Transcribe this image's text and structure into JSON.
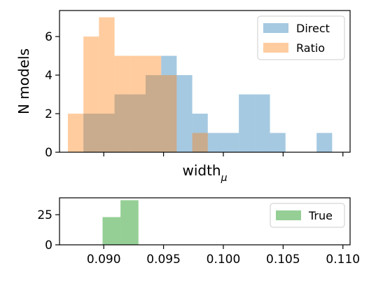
{
  "chart_data": [
    {
      "type": "bar",
      "subtype": "histogram",
      "xlabel": "width",
      "xlabel_subscript": "μ",
      "ylabel": "N models",
      "xlim": [
        0.0863,
        0.1106
      ],
      "ylim": [
        0,
        7.35
      ],
      "yticks": [
        0,
        2,
        4,
        6
      ],
      "xticks": [
        0.09,
        0.095,
        0.1,
        0.105,
        0.11
      ],
      "xticklabels_visible": false,
      "legend_position": "upper right",
      "series": [
        {
          "name": "Direct",
          "color": "#1f77b4",
          "alpha": 0.4,
          "bin_edges": [
            0.0883,
            0.0896,
            0.0909,
            0.0922,
            0.0935,
            0.0948,
            0.0961,
            0.0974,
            0.0987,
            0.1,
            0.1013,
            0.1026,
            0.1039,
            0.1052,
            0.1065,
            0.1078,
            0.1091,
            0.1104
          ],
          "counts": [
            2,
            2,
            3,
            3,
            4,
            5,
            4,
            2,
            1,
            1,
            3,
            3,
            1,
            0,
            0,
            1,
            0
          ]
        },
        {
          "name": "Ratio",
          "color": "#ff7f0e",
          "alpha": 0.4,
          "bin_edges": [
            0.087,
            0.0883,
            0.0896,
            0.0909,
            0.0922,
            0.0935,
            0.0948,
            0.0961,
            0.0974,
            0.0987
          ],
          "counts": [
            2,
            6,
            7,
            5,
            5,
            5,
            4,
            0,
            1
          ]
        }
      ]
    },
    {
      "type": "bar",
      "subtype": "histogram",
      "xlim": [
        0.0863,
        0.1106
      ],
      "ylim": [
        0,
        39
      ],
      "yticks": [
        0,
        25
      ],
      "xticks": [
        0.09,
        0.095,
        0.1,
        0.105,
        0.11
      ],
      "xticklabels": [
        "0.090",
        "0.095",
        "0.100",
        "0.105",
        "0.110"
      ],
      "legend_position": "upper right",
      "series": [
        {
          "name": "True",
          "color": "#2ca02c",
          "alpha": 0.5,
          "bin_edges": [
            0.0899,
            0.0914,
            0.0929
          ],
          "counts": [
            23,
            37
          ]
        }
      ]
    }
  ]
}
